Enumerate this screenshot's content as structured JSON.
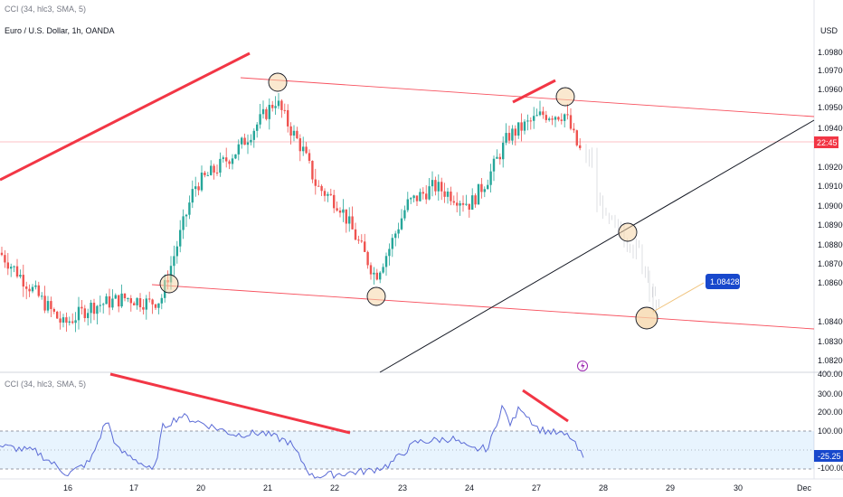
{
  "header": {
    "top_indicator_label": "CCI (34, hlc3, SMA, 5)",
    "symbol_title": "Euro / U.S. Dollar, 1h, OANDA"
  },
  "price_axis": {
    "currency": "USD",
    "ticks": [
      "1.09800",
      "1.09700",
      "1.09600",
      "1.09500",
      "1.09400",
      "1.09200",
      "1.09100",
      "1.09000",
      "1.08900",
      "1.08800",
      "1.08700",
      "1.08600",
      "1.08400",
      "1.08300",
      "1.08200"
    ],
    "current_price_badge": "22:45",
    "target_label": "1.08428"
  },
  "cci_panel": {
    "label": "CCI (34, hlc3, SMA, 5)",
    "ticks": [
      "400.00",
      "300.00",
      "200.00",
      "100.00",
      "-100.00"
    ],
    "current_value": "-25.25"
  },
  "time_axis": {
    "ticks": [
      "16",
      "17",
      "20",
      "21",
      "22",
      "23",
      "24",
      "27",
      "28",
      "29",
      "30",
      "Dec"
    ]
  },
  "icons": {
    "flash": "lightning-icon"
  },
  "colors": {
    "up": "#26a69a",
    "down": "#ef5350",
    "trend": "#f23645",
    "channel": "#f7525f",
    "cci_line": "#5b6bd6",
    "badge": "#f23645",
    "target_badge": "#1848cc"
  },
  "chart_data": {
    "type": "candlestick",
    "symbol": "Euro / U.S. Dollar, 1h, OANDA",
    "price_range": [
      1.0813,
      1.099
    ],
    "close_anchors": [
      {
        "date": "15",
        "close": 1.0878
      },
      {
        "date": "16",
        "close": 1.0838
      },
      {
        "date": "16.5",
        "close": 1.0848
      },
      {
        "date": "17",
        "close": 1.0853
      },
      {
        "date": "17.4",
        "close": 1.085
      },
      {
        "date": "17.5",
        "close": 1.0852
      },
      {
        "date": "20",
        "close": 1.0915
      },
      {
        "date": "20.3",
        "close": 1.0925
      },
      {
        "date": "20.6",
        "close": 1.0935
      },
      {
        "date": "21",
        "close": 1.0963
      },
      {
        "date": "21.3",
        "close": 1.0948
      },
      {
        "date": "21.5",
        "close": 1.0935
      },
      {
        "date": "21.8",
        "close": 1.0915
      },
      {
        "date": "22",
        "close": 1.0905
      },
      {
        "date": "22.5",
        "close": 1.0865
      },
      {
        "date": "22.8",
        "close": 1.088
      },
      {
        "date": "23",
        "close": 1.0905
      },
      {
        "date": "23.5",
        "close": 1.0915
      },
      {
        "date": "24",
        "close": 1.0905
      },
      {
        "date": "24.5",
        "close": 1.092
      },
      {
        "date": "25",
        "close": 1.0943
      },
      {
        "date": "27",
        "close": 1.0955
      },
      {
        "date": "27.4",
        "close": 1.0955
      },
      {
        "date": "27.5",
        "close": 1.0935
      }
    ],
    "cci_range": [
      -120,
      420
    ],
    "cci_levels": [
      100,
      -100,
      0
    ]
  }
}
